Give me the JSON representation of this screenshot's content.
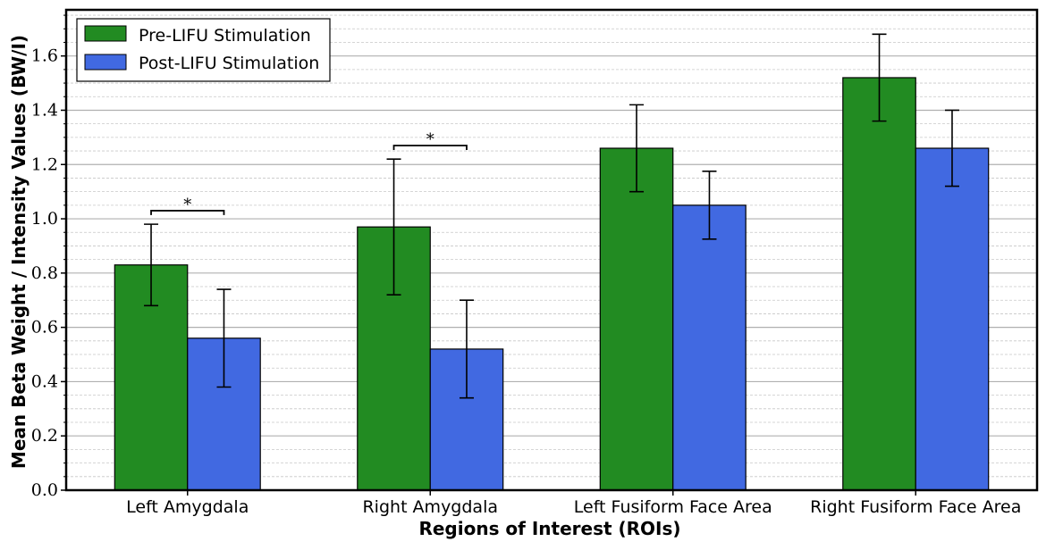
{
  "chart_data": {
    "type": "bar",
    "xlabel": "Regions of Interest (ROIs)",
    "ylabel": "Mean Beta Weight / Intensity Values (BW/I)",
    "categories": [
      "Left Amygdala",
      "Right Amygdala",
      "Left Fusiform Face Area",
      "Right Fusiform Face Area"
    ],
    "series": [
      {
        "name": "Pre-LIFU Stimulation",
        "color": "#228B22",
        "values": [
          0.83,
          0.97,
          1.26,
          1.52
        ],
        "errors": [
          0.15,
          0.25,
          0.16,
          0.16
        ]
      },
      {
        "name": "Post-LIFU Stimulation",
        "color": "#4169E1",
        "values": [
          0.56,
          0.52,
          1.05,
          1.26
        ],
        "errors": [
          0.18,
          0.18,
          0.125,
          0.14
        ]
      }
    ],
    "ylim": [
      0,
      1.77
    ],
    "yticks": [
      "0.0",
      "0.2",
      "0.4",
      "0.6",
      "0.8",
      "1.0",
      "1.2",
      "1.4",
      "1.6"
    ],
    "grid": true,
    "legend_position": "top-left",
    "significance": [
      {
        "category_index": 0,
        "y": 1.03,
        "label": "*"
      },
      {
        "category_index": 1,
        "y": 1.27,
        "label": "*"
      }
    ]
  }
}
